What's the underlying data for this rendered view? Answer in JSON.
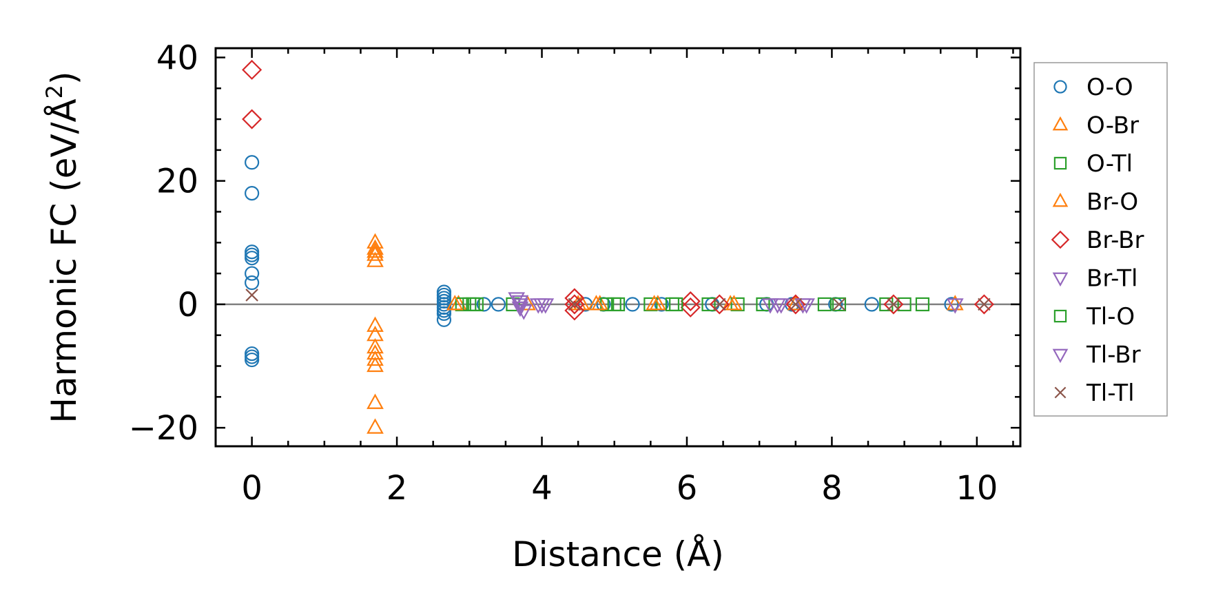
{
  "chart_data": {
    "type": "scatter",
    "xlabel": "Distance (Å)",
    "ylabel": "Harmonic FC (eV/Å",
    "ylabel_superscript": "2",
    "ylabel_close": ")",
    "xlim": [
      -0.5,
      10.6
    ],
    "ylim": [
      -23,
      41.5
    ],
    "xticks": [
      0,
      2,
      4,
      6,
      8,
      10
    ],
    "xtick_labels": [
      "0",
      "2",
      "4",
      "6",
      "8",
      "10"
    ],
    "yticks": [
      -20,
      0,
      20,
      40
    ],
    "ytick_labels": [
      "−20",
      "0",
      "20",
      "40"
    ],
    "grid": false,
    "zero_line": true,
    "legend_position": "outside-right",
    "series": [
      {
        "name": "O-O",
        "marker": "circle",
        "color": "#1f77b4",
        "points": [
          [
            0,
            23
          ],
          [
            0,
            18
          ],
          [
            0,
            8.5
          ],
          [
            0,
            8
          ],
          [
            0,
            7.5
          ],
          [
            0,
            5
          ],
          [
            0,
            3.5
          ],
          [
            0,
            -8
          ],
          [
            0,
            -8.5
          ],
          [
            0,
            -9
          ],
          [
            2.65,
            2
          ],
          [
            2.65,
            1.5
          ],
          [
            2.65,
            1
          ],
          [
            2.65,
            0.5
          ],
          [
            2.65,
            0
          ],
          [
            2.65,
            -0.5
          ],
          [
            2.65,
            -1
          ],
          [
            2.65,
            -1.5
          ],
          [
            2.65,
            -2.5
          ],
          [
            3.2,
            0
          ],
          [
            3.4,
            0
          ],
          [
            4.6,
            0
          ],
          [
            4.85,
            0
          ],
          [
            5.25,
            0
          ],
          [
            5.65,
            0
          ],
          [
            6.35,
            0
          ],
          [
            7.1,
            0
          ],
          [
            7.45,
            0
          ],
          [
            8.05,
            0
          ],
          [
            8.55,
            0
          ],
          [
            9.65,
            0
          ]
        ]
      },
      {
        "name": "O-Br",
        "marker": "triangle-up",
        "color": "#ff7f0e",
        "points": [
          [
            1.7,
            10
          ],
          [
            1.7,
            9
          ],
          [
            1.7,
            8.5
          ],
          [
            1.7,
            8
          ],
          [
            1.7,
            7
          ],
          [
            1.7,
            -3.5
          ],
          [
            1.7,
            -5
          ],
          [
            1.7,
            -7
          ],
          [
            1.7,
            -8
          ],
          [
            1.7,
            -9
          ],
          [
            1.7,
            -10
          ],
          [
            1.7,
            -16
          ],
          [
            1.7,
            -20
          ],
          [
            2.85,
            0
          ],
          [
            3.8,
            0
          ],
          [
            4.55,
            0
          ],
          [
            4.8,
            0
          ],
          [
            5.6,
            0
          ],
          [
            6.6,
            0
          ],
          [
            7.5,
            0
          ],
          [
            9.7,
            0
          ]
        ]
      },
      {
        "name": "O-Tl",
        "marker": "square",
        "color": "#2ca02c",
        "points": [
          [
            2.9,
            0
          ],
          [
            3.0,
            0
          ],
          [
            3.1,
            0
          ],
          [
            3.6,
            0
          ],
          [
            4.9,
            0
          ],
          [
            5.0,
            0
          ],
          [
            5.5,
            0
          ],
          [
            5.8,
            0
          ],
          [
            6.3,
            0
          ],
          [
            6.7,
            0
          ],
          [
            7.05,
            0
          ],
          [
            7.9,
            0
          ],
          [
            8.75,
            0
          ],
          [
            9.0,
            0
          ],
          [
            9.25,
            0
          ]
        ]
      },
      {
        "name": "Br-O",
        "marker": "triangle-up",
        "color": "#ff7f0e",
        "points": [
          [
            2.8,
            0
          ],
          [
            4.5,
            0
          ],
          [
            4.75,
            0
          ],
          [
            5.55,
            0
          ],
          [
            6.65,
            0
          ]
        ]
      },
      {
        "name": "Br-Br",
        "marker": "diamond",
        "color": "#d62728",
        "points": [
          [
            0,
            38
          ],
          [
            0,
            30
          ],
          [
            4.45,
            1
          ],
          [
            4.45,
            0
          ],
          [
            4.45,
            -1
          ],
          [
            6.05,
            0.5
          ],
          [
            6.05,
            -0.5
          ],
          [
            6.45,
            0
          ],
          [
            7.5,
            0
          ],
          [
            8.85,
            0
          ],
          [
            10.1,
            0
          ]
        ]
      },
      {
        "name": "Br-Tl",
        "marker": "triangle-down",
        "color": "#9467bd",
        "points": [
          [
            3.65,
            1
          ],
          [
            3.7,
            0
          ],
          [
            3.75,
            -1
          ],
          [
            3.95,
            0
          ],
          [
            4.05,
            0
          ],
          [
            7.15,
            0
          ],
          [
            7.3,
            0
          ],
          [
            7.6,
            0
          ]
        ]
      },
      {
        "name": "Tl-O",
        "marker": "square",
        "color": "#2ca02c",
        "points": [
          [
            3.05,
            0
          ],
          [
            5.05,
            0
          ],
          [
            5.85,
            0
          ],
          [
            8.1,
            0
          ]
        ]
      },
      {
        "name": "Tl-Br",
        "marker": "triangle-down",
        "color": "#9467bd",
        "points": [
          [
            3.7,
            0.5
          ],
          [
            3.7,
            -0.5
          ],
          [
            4.0,
            0
          ],
          [
            7.25,
            0
          ],
          [
            7.65,
            0
          ],
          [
            9.7,
            0
          ]
        ]
      },
      {
        "name": "Tl-Tl",
        "marker": "x",
        "color": "#8c564b",
        "points": [
          [
            0,
            1.5
          ],
          [
            4.45,
            0
          ],
          [
            6.45,
            0
          ],
          [
            7.5,
            0
          ],
          [
            8.1,
            0
          ],
          [
            8.85,
            0
          ],
          [
            10.1,
            0
          ]
        ]
      }
    ]
  }
}
